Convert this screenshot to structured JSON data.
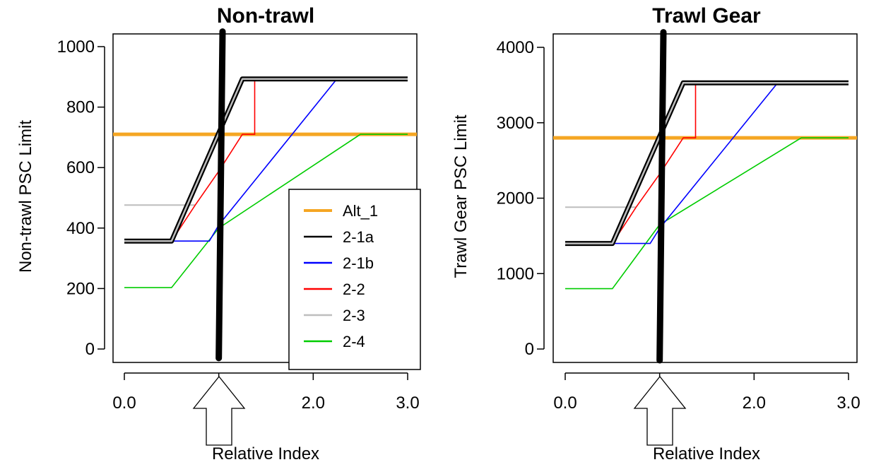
{
  "chart_data": [
    {
      "type": "line",
      "title": "Non-trawl",
      "xlabel": "Relative Index",
      "ylabel": "Non-trawl PSC Limit",
      "xlim": [
        0,
        3
      ],
      "ylim": [
        0,
        1000
      ],
      "xticks": [
        "0.0",
        "1.0",
        "2.0",
        "3.0"
      ],
      "yticks": [
        "0",
        "200",
        "400",
        "600",
        "800",
        "1000"
      ],
      "legend": {
        "position": "bottom-right",
        "entries": [
          "Alt_1",
          "2-1a",
          "2-1b",
          "2-2",
          "2-3",
          "2-4"
        ]
      },
      "current_index_marker": 1.0,
      "vertical_line": {
        "x": [
          1.0,
          1.04
        ],
        "y": [
          -30,
          1050
        ],
        "color": "#000000"
      },
      "series": [
        {
          "name": "Alt_1",
          "color": "#f5a623",
          "x": [
            -0.2,
            3.2
          ],
          "y": [
            710,
            710
          ]
        },
        {
          "name": "2-1a",
          "color": "#000000",
          "outline": true,
          "x": [
            0,
            0.5,
            1.25,
            3
          ],
          "y": [
            357,
            357,
            893,
            893
          ]
        },
        {
          "name": "2-1b",
          "color": "#0000ff",
          "x": [
            0,
            0.9,
            1.0,
            2.25
          ],
          "y": [
            357,
            357,
            410,
            893
          ]
        },
        {
          "name": "2-2",
          "color": "#ff0000",
          "x": [
            0.5,
            0.75,
            0.75,
            1.0,
            1.0,
            1.25,
            1.25,
            1.38,
            1.38,
            1.5
          ],
          "y": [
            357,
            476,
            476,
            588,
            588,
            710,
            710,
            710,
            893,
            893
          ]
        },
        {
          "name": "2-3",
          "color": "#bebebe",
          "x": [
            0,
            0.75
          ],
          "y": [
            476,
            476
          ]
        },
        {
          "name": "2-4",
          "color": "#00cc00",
          "x": [
            0,
            0.5,
            1.0,
            2.5,
            3
          ],
          "y": [
            203,
            203,
            400,
            710,
            710
          ]
        }
      ]
    },
    {
      "type": "line",
      "title": "Trawl Gear",
      "xlabel": "Relative Index",
      "ylabel": "Trawl Gear PSC Limit",
      "xlim": [
        0,
        3
      ],
      "ylim": [
        0,
        4000
      ],
      "xticks": [
        "0.0",
        "1.0",
        "2.0",
        "3.0"
      ],
      "yticks": [
        "0",
        "1000",
        "2000",
        "3000",
        "4000"
      ],
      "current_index_marker": 1.0,
      "vertical_line": {
        "x": [
          1.0,
          1.04
        ],
        "y": [
          -150,
          4200
        ],
        "color": "#000000"
      },
      "series": [
        {
          "name": "Alt_1",
          "color": "#f5a623",
          "x": [
            -0.2,
            3.2
          ],
          "y": [
            2800,
            2800
          ]
        },
        {
          "name": "2-1a",
          "color": "#000000",
          "outline": true,
          "x": [
            0,
            0.5,
            1.25,
            3
          ],
          "y": [
            1400,
            1400,
            3530,
            3530
          ]
        },
        {
          "name": "2-1b",
          "color": "#0000ff",
          "x": [
            0,
            0.9,
            1.0,
            2.25
          ],
          "y": [
            1400,
            1400,
            1600,
            3530
          ]
        },
        {
          "name": "2-2",
          "color": "#ff0000",
          "x": [
            0.5,
            0.75,
            0.75,
            1.0,
            1.0,
            1.25,
            1.25,
            1.38,
            1.38,
            1.5
          ],
          "y": [
            1400,
            1880,
            1880,
            2320,
            2320,
            2800,
            2800,
            2800,
            3530,
            3530
          ]
        },
        {
          "name": "2-3",
          "color": "#bebebe",
          "x": [
            0,
            0.75
          ],
          "y": [
            1880,
            1880
          ]
        },
        {
          "name": "2-4",
          "color": "#00cc00",
          "x": [
            0,
            0.5,
            1.0,
            2.5,
            3
          ],
          "y": [
            800,
            800,
            1650,
            2800,
            2800
          ]
        }
      ]
    }
  ]
}
